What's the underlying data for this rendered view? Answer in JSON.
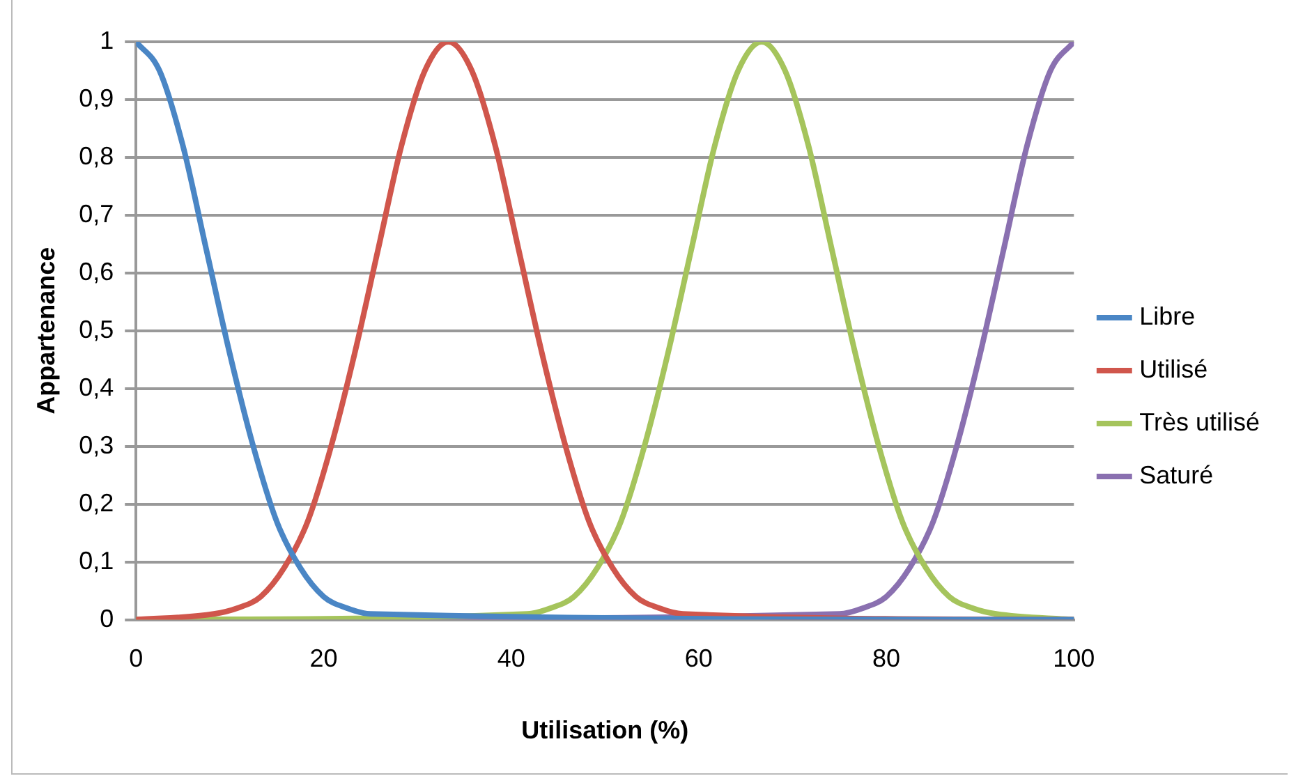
{
  "chart_data": {
    "type": "line",
    "xlabel": "Utilisation (%)",
    "ylabel": "Appartenance",
    "xlim": [
      0,
      100
    ],
    "xticks": [
      0,
      20,
      40,
      60,
      80,
      100
    ],
    "ylim": [
      0,
      1
    ],
    "yticks": [
      0,
      {
        "value": 0.1,
        "label": "0,1"
      },
      {
        "value": 0.2,
        "label": "0,2"
      },
      {
        "value": 0.3,
        "label": "0,3"
      },
      {
        "value": 0.4,
        "label": "0,4"
      },
      {
        "value": 0.5,
        "label": "0,5"
      },
      {
        "value": 0.6,
        "label": "0,6"
      },
      {
        "value": 0.7,
        "label": "0,7"
      },
      {
        "value": 0.8,
        "label": "0,8"
      },
      {
        "value": 0.9,
        "label": "0,9"
      },
      1
    ],
    "grid": "y",
    "legend": "right",
    "marker": "none",
    "line_style": "solid",
    "series": [
      {
        "name": "Libre",
        "color": "#4a86c5",
        "x": [
          0,
          2.5,
          5,
          7.5,
          10,
          12.5,
          15,
          17.5,
          20,
          22.5,
          25,
          100
        ],
        "values": [
          1,
          0.95,
          0.82,
          0.64,
          0.46,
          0.3,
          0.17,
          0.09,
          0.04,
          0.02,
          0.01,
          0
        ]
      },
      {
        "name": "Utilisé",
        "color": "#d0564c",
        "x": [
          0,
          8.3,
          10.8,
          13.3,
          15.8,
          18.3,
          20.8,
          23.3,
          25.8,
          28.3,
          30.8,
          33.3,
          35.8,
          38.3,
          40.8,
          43.3,
          45.8,
          48.3,
          50.8,
          53.3,
          55.8,
          58.3,
          100
        ],
        "values": [
          0,
          0.01,
          0.02,
          0.04,
          0.09,
          0.17,
          0.3,
          0.46,
          0.64,
          0.82,
          0.95,
          1,
          0.95,
          0.82,
          0.64,
          0.46,
          0.3,
          0.17,
          0.09,
          0.04,
          0.02,
          0.01,
          0
        ]
      },
      {
        "name": "Très utilisé",
        "color": "#a5c45c",
        "x": [
          0,
          41.7,
          44.2,
          46.7,
          49.2,
          51.7,
          54.2,
          56.7,
          59.2,
          61.7,
          64.2,
          66.7,
          69.2,
          71.7,
          74.2,
          76.7,
          79.2,
          81.7,
          84.2,
          86.7,
          89.2,
          91.7,
          100
        ],
        "values": [
          0,
          0.01,
          0.02,
          0.04,
          0.09,
          0.17,
          0.3,
          0.46,
          0.64,
          0.82,
          0.95,
          1,
          0.95,
          0.82,
          0.64,
          0.46,
          0.3,
          0.17,
          0.09,
          0.04,
          0.02,
          0.01,
          0
        ]
      },
      {
        "name": "Saturé",
        "color": "#8a70b0",
        "x": [
          0,
          75,
          77.5,
          80,
          82.5,
          85,
          87.5,
          90,
          92.5,
          95,
          97.5,
          100
        ],
        "values": [
          0,
          0.01,
          0.02,
          0.04,
          0.09,
          0.17,
          0.3,
          0.46,
          0.64,
          0.82,
          0.95,
          1
        ]
      }
    ]
  }
}
